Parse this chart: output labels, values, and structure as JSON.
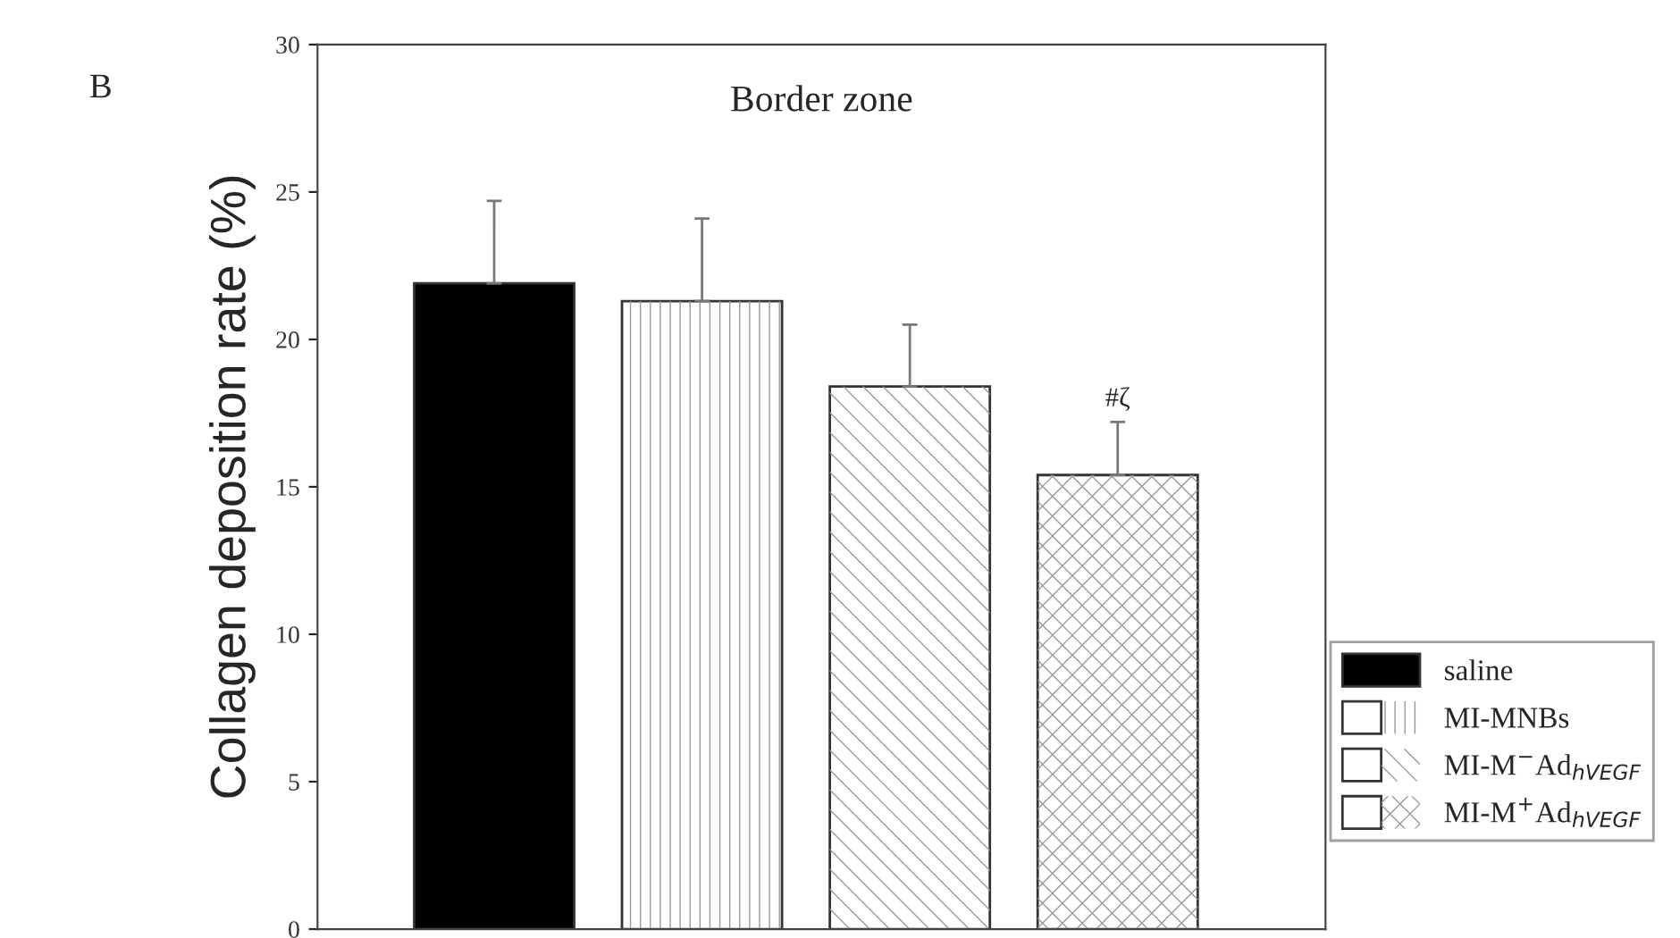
{
  "chart_data": {
    "type": "bar",
    "title": "Border zone",
    "ylabel": "Collagen deposition rate (%)",
    "categories": [
      null,
      null,
      null,
      null
    ],
    "series": [
      {
        "name": "saline",
        "color": "#000000",
        "values": [
          21.9,
          null,
          null,
          null
        ],
        "errors": [
          2.8,
          null,
          null,
          null
        ]
      },
      {
        "name": "MI-MNBs",
        "color": "#ffffff",
        "values": [
          null,
          21.3,
          null,
          null
        ],
        "errors": [
          null,
          2.8,
          null,
          null
        ]
      },
      {
        "name": "MI-M$^{−}$Ad$_{hVEGF}$",
        "color": "#ffffff",
        "values": [
          null,
          null,
          18.4,
          null
        ],
        "errors": [
          null,
          null,
          2.1,
          null
        ]
      },
      {
        "name": "MI-M$^{+}$Ad$_{hVEGF}$",
        "color": "#ffffff",
        "values": [
          null,
          null,
          null,
          15.4
        ],
        "errors": [
          null,
          null,
          null,
          1.8
        ]
      }
    ],
    "ylim": [
      0,
      30
    ],
    "yticks": [
      0,
      5,
      10,
      15,
      20,
      25,
      30
    ],
    "annotations": [
      {
        "text": "#ζ",
        "y": 17.2
      },
      "B"
    ],
    "legend": "bottom right",
    "grid": false
  }
}
